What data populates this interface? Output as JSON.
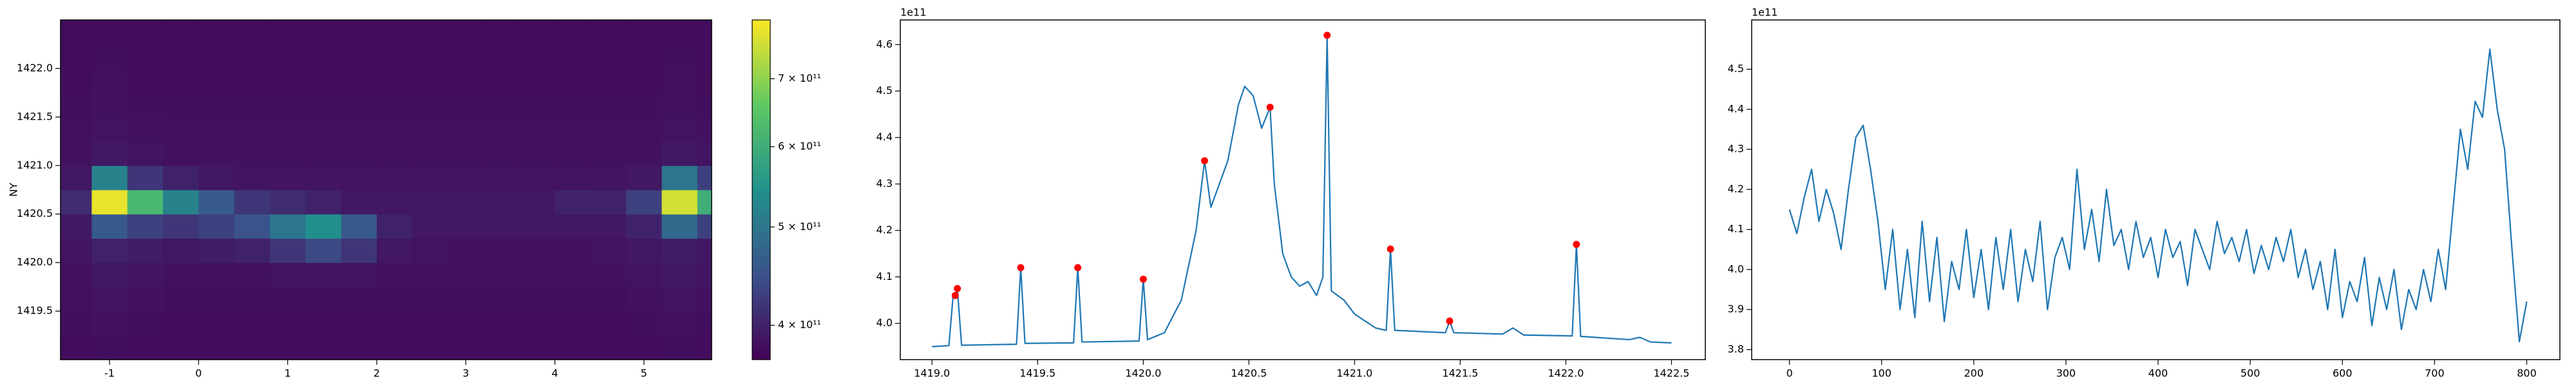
{
  "chart_data": [
    {
      "type": "heatmap",
      "ylabel": "NY",
      "colormap": "viridis",
      "x": [
        -1.4,
        -1.0,
        -0.6,
        -0.2,
        0.2,
        0.6,
        1.0,
        1.4,
        1.8,
        2.2,
        2.6,
        3.0,
        3.4,
        3.8,
        4.2,
        4.6,
        5.0,
        5.4,
        5.8
      ],
      "y": [
        1419.125,
        1419.375,
        1419.625,
        1419.875,
        1420.125,
        1420.375,
        1420.625,
        1420.875,
        1421.125,
        1421.375,
        1421.625,
        1421.875,
        1422.125,
        1422.375
      ],
      "z": [
        [
          380000000000.0,
          382000000000.0,
          380000000000.0,
          380000000000.0,
          380000000000.0,
          380000000000.0,
          380000000000.0,
          380000000000.0,
          380000000000.0,
          380000000000.0,
          380000000000.0,
          380000000000.0,
          380000000000.0,
          380000000000.0,
          380000000000.0,
          380000000000.0,
          380000000000.0,
          382000000000.0,
          380000000000.0
        ],
        [
          382000000000.0,
          384000000000.0,
          382000000000.0,
          381000000000.0,
          381000000000.0,
          381000000000.0,
          381000000000.0,
          381000000000.0,
          381000000000.0,
          381000000000.0,
          381000000000.0,
          381000000000.0,
          381000000000.0,
          381000000000.0,
          381000000000.0,
          381000000000.0,
          382000000000.0,
          384000000000.0,
          382000000000.0
        ],
        [
          383000000000.0,
          386000000000.0,
          384000000000.0,
          382000000000.0,
          382000000000.0,
          382000000000.0,
          382000000000.0,
          382000000000.0,
          382000000000.0,
          382000000000.0,
          382000000000.0,
          382000000000.0,
          382000000000.0,
          382000000000.0,
          382000000000.0,
          382000000000.0,
          384000000000.0,
          386000000000.0,
          384000000000.0
        ],
        [
          385000000000.0,
          390000000000.0,
          387000000000.0,
          385000000000.0,
          385000000000.0,
          385000000000.0,
          386000000000.0,
          387000000000.0,
          386000000000.0,
          384000000000.0,
          383000000000.0,
          383000000000.0,
          383000000000.0,
          383000000000.0,
          383000000000.0,
          384000000000.0,
          386000000000.0,
          390000000000.0,
          387000000000.0
        ],
        [
          387000000000.0,
          400000000000.0,
          395000000000.0,
          390000000000.0,
          395000000000.0,
          400000000000.0,
          420000000000.0,
          440000000000.0,
          420000000000.0,
          390000000000.0,
          386000000000.0,
          385000000000.0,
          385000000000.0,
          385000000000.0,
          385000000000.0,
          386000000000.0,
          390000000000.0,
          395000000000.0,
          390000000000.0
        ],
        [
          390000000000.0,
          460000000000.0,
          430000000000.0,
          420000000000.0,
          430000000000.0,
          450000000000.0,
          500000000000.0,
          540000000000.0,
          460000000000.0,
          400000000000.0,
          390000000000.0,
          390000000000.0,
          390000000000.0,
          390000000000.0,
          390000000000.0,
          390000000000.0,
          400000000000.0,
          480000000000.0,
          430000000000.0
        ],
        [
          410000000000.0,
          780000000000.0,
          620000000000.0,
          520000000000.0,
          460000000000.0,
          420000000000.0,
          410000000000.0,
          400000000000.0,
          390000000000.0,
          390000000000.0,
          390000000000.0,
          390000000000.0,
          390000000000.0,
          390000000000.0,
          400000000000.0,
          400000000000.0,
          430000000000.0,
          760000000000.0,
          600000000000.0
        ],
        [
          390000000000.0,
          520000000000.0,
          420000000000.0,
          400000000000.0,
          390000000000.0,
          388000000000.0,
          387000000000.0,
          387000000000.0,
          386000000000.0,
          386000000000.0,
          386000000000.0,
          386000000000.0,
          386000000000.0,
          386000000000.0,
          386000000000.0,
          387000000000.0,
          390000000000.0,
          500000000000.0,
          430000000000.0
        ],
        [
          385000000000.0,
          392000000000.0,
          387000000000.0,
          385000000000.0,
          384000000000.0,
          384000000000.0,
          384000000000.0,
          384000000000.0,
          384000000000.0,
          384000000000.0,
          384000000000.0,
          384000000000.0,
          384000000000.0,
          384000000000.0,
          384000000000.0,
          384000000000.0,
          385000000000.0,
          392000000000.0,
          387000000000.0
        ],
        [
          383000000000.0,
          386000000000.0,
          384000000000.0,
          383000000000.0,
          383000000000.0,
          383000000000.0,
          383000000000.0,
          383000000000.0,
          383000000000.0,
          383000000000.0,
          383000000000.0,
          383000000000.0,
          383000000000.0,
          383000000000.0,
          383000000000.0,
          383000000000.0,
          383000000000.0,
          386000000000.0,
          384000000000.0
        ],
        [
          382000000000.0,
          384000000000.0,
          382000000000.0,
          382000000000.0,
          382000000000.0,
          382000000000.0,
          382000000000.0,
          382000000000.0,
          382000000000.0,
          382000000000.0,
          382000000000.0,
          382000000000.0,
          382000000000.0,
          382000000000.0,
          382000000000.0,
          382000000000.0,
          382000000000.0,
          384000000000.0,
          382000000000.0
        ],
        [
          381000000000.0,
          383000000000.0,
          381000000000.0,
          381000000000.0,
          381000000000.0,
          381000000000.0,
          381000000000.0,
          381000000000.0,
          381000000000.0,
          381000000000.0,
          381000000000.0,
          381000000000.0,
          381000000000.0,
          381000000000.0,
          381000000000.0,
          381000000000.0,
          381000000000.0,
          383000000000.0,
          381000000000.0
        ],
        [
          380000000000.0,
          382000000000.0,
          380000000000.0,
          380000000000.0,
          380000000000.0,
          380000000000.0,
          380000000000.0,
          380000000000.0,
          380000000000.0,
          380000000000.0,
          380000000000.0,
          380000000000.0,
          380000000000.0,
          380000000000.0,
          380000000000.0,
          380000000000.0,
          380000000000.0,
          382000000000.0,
          380000000000.0
        ],
        [
          380000000000.0,
          381000000000.0,
          380000000000.0,
          380000000000.0,
          380000000000.0,
          380000000000.0,
          380000000000.0,
          380000000000.0,
          380000000000.0,
          380000000000.0,
          380000000000.0,
          380000000000.0,
          380000000000.0,
          380000000000.0,
          380000000000.0,
          380000000000.0,
          380000000000.0,
          381000000000.0,
          380000000000.0
        ]
      ],
      "xlim": [
        -1.55,
        5.76
      ],
      "ylim": [
        1419.0,
        1422.5
      ],
      "xticks": [
        -1,
        0,
        1,
        2,
        3,
        4,
        5
      ],
      "yticks": [
        1419.5,
        {
          "value": 1420,
          "label": "1420.0"
        },
        1420.5,
        {
          "value": 1421,
          "label": "1421.0"
        },
        1421.5,
        {
          "value": 1422,
          "label": "1422.0"
        }
      ],
      "colorbar": {
        "scale": "log",
        "lim": [
          370000000000.0,
          800000000000.0
        ],
        "ticks": [
          {
            "value": 400000000000.0,
            "label": "4 × 10¹¹"
          },
          {
            "value": 500000000000.0,
            "label": "5 × 10¹¹"
          },
          {
            "value": 600000000000.0,
            "label": "6 × 10¹¹"
          },
          {
            "value": 700000000000.0,
            "label": "7 × 10¹¹"
          }
        ]
      }
    },
    {
      "type": "line",
      "offset_text": "1e11",
      "series": [
        {
          "color": "#1f77b4",
          "mode": "line",
          "x": [
            1419.0,
            1419.08,
            1419.1,
            1419.11,
            1419.12,
            1419.14,
            1419.4,
            1419.42,
            1419.44,
            1419.67,
            1419.69,
            1419.71,
            1419.98,
            1420.0,
            1420.02,
            1420.1,
            1420.18,
            1420.25,
            1420.29,
            1420.32,
            1420.4,
            1420.45,
            1420.48,
            1420.52,
            1420.56,
            1420.6,
            1420.62,
            1420.66,
            1420.7,
            1420.74,
            1420.78,
            1420.82,
            1420.85,
            1420.87,
            1420.89,
            1420.95,
            1421.0,
            1421.1,
            1421.15,
            1421.17,
            1421.19,
            1421.43,
            1421.45,
            1421.47,
            1421.7,
            1421.75,
            1421.8,
            1422.03,
            1422.05,
            1422.07,
            1422.3,
            1422.35,
            1422.4,
            1422.5
          ],
          "values": [
            3.95,
            3.952,
            4.06,
            4.06,
            4.075,
            3.953,
            3.955,
            4.12,
            3.957,
            3.958,
            4.12,
            3.96,
            3.962,
            4.095,
            3.965,
            3.98,
            4.05,
            4.2,
            4.35,
            4.25,
            4.35,
            4.47,
            4.51,
            4.49,
            4.42,
            4.465,
            4.3,
            4.15,
            4.1,
            4.08,
            4.09,
            4.06,
            4.1,
            4.62,
            4.07,
            4.05,
            4.02,
            3.99,
            3.985,
            4.16,
            3.985,
            3.98,
            4.005,
            3.98,
            3.977,
            3.99,
            3.975,
            3.973,
            4.17,
            3.972,
            3.965,
            3.97,
            3.96,
            3.958
          ]
        },
        {
          "color": "red",
          "mode": "markers",
          "x": [
            1419.11,
            1419.12,
            1419.42,
            1419.69,
            1420.0,
            1420.29,
            1420.6,
            1420.87,
            1421.17,
            1421.45,
            1422.05
          ],
          "values": [
            4.06,
            4.075,
            4.12,
            4.12,
            4.095,
            4.35,
            4.465,
            4.62,
            4.16,
            4.005,
            4.17
          ]
        }
      ],
      "xlim": [
        1418.85,
        1422.66
      ],
      "ylim": [
        3.922,
        4.653
      ],
      "xticks": [
        {
          "value": 1419,
          "label": "1419.0"
        },
        1419.5,
        {
          "value": 1420,
          "label": "1420.0"
        },
        1420.5,
        {
          "value": 1421,
          "label": "1421.0"
        },
        1421.5,
        {
          "value": 1422,
          "label": "1422.0"
        },
        1422.5
      ],
      "yticks": [
        {
          "value": 4,
          "label": "4.0"
        },
        4.1,
        4.2,
        4.3,
        4.4,
        4.5,
        4.6
      ]
    },
    {
      "type": "line",
      "offset_text": "1e11",
      "series": [
        {
          "color": "#1f77b4",
          "mode": "line",
          "x": [
            0,
            8,
            16,
            24,
            32,
            40,
            48,
            56,
            64,
            72,
            80,
            88,
            96,
            104,
            112,
            120,
            128,
            136,
            144,
            152,
            160,
            168,
            176,
            184,
            192,
            200,
            208,
            216,
            224,
            232,
            240,
            248,
            256,
            264,
            272,
            280,
            288,
            296,
            304,
            312,
            320,
            328,
            336,
            344,
            352,
            360,
            368,
            376,
            384,
            392,
            400,
            408,
            416,
            424,
            432,
            440,
            448,
            456,
            464,
            472,
            480,
            488,
            496,
            504,
            512,
            520,
            528,
            536,
            544,
            552,
            560,
            568,
            576,
            584,
            592,
            600,
            608,
            616,
            624,
            632,
            640,
            648,
            656,
            664,
            672,
            680,
            688,
            696,
            704,
            712,
            720,
            728,
            736,
            744,
            752,
            760,
            768,
            776,
            784,
            792,
            800
          ],
          "values": [
            4.15,
            4.09,
            4.18,
            4.25,
            4.12,
            4.2,
            4.14,
            4.05,
            4.2,
            4.33,
            4.36,
            4.25,
            4.12,
            3.95,
            4.1,
            3.9,
            4.05,
            3.88,
            4.12,
            3.92,
            4.08,
            3.87,
            4.02,
            3.95,
            4.1,
            3.93,
            4.05,
            3.9,
            4.08,
            3.95,
            4.1,
            3.92,
            4.05,
            3.97,
            4.12,
            3.9,
            4.03,
            4.08,
            4.0,
            4.25,
            4.05,
            4.15,
            4.02,
            4.2,
            4.06,
            4.1,
            4.0,
            4.12,
            4.03,
            4.08,
            3.98,
            4.1,
            4.03,
            4.07,
            3.96,
            4.1,
            4.05,
            4.0,
            4.12,
            4.04,
            4.08,
            4.02,
            4.1,
            3.99,
            4.06,
            4.0,
            4.08,
            4.02,
            4.1,
            3.98,
            4.05,
            3.95,
            4.02,
            3.9,
            4.05,
            3.88,
            3.97,
            3.92,
            4.03,
            3.86,
            3.98,
            3.9,
            4.0,
            3.85,
            3.95,
            3.9,
            4.0,
            3.92,
            4.05,
            3.95,
            4.15,
            4.35,
            4.25,
            4.42,
            4.38,
            4.55,
            4.4,
            4.3,
            4.05,
            3.82,
            3.92
          ]
        }
      ],
      "xlim": [
        -41,
        836
      ],
      "ylim": [
        3.775,
        4.623
      ],
      "xticks": [
        0,
        100,
        200,
        300,
        400,
        500,
        600,
        700,
        800
      ],
      "yticks": [
        3.8,
        3.9,
        {
          "value": 4,
          "label": "4.0"
        },
        4.1,
        4.2,
        4.3,
        4.4,
        4.5
      ]
    }
  ]
}
